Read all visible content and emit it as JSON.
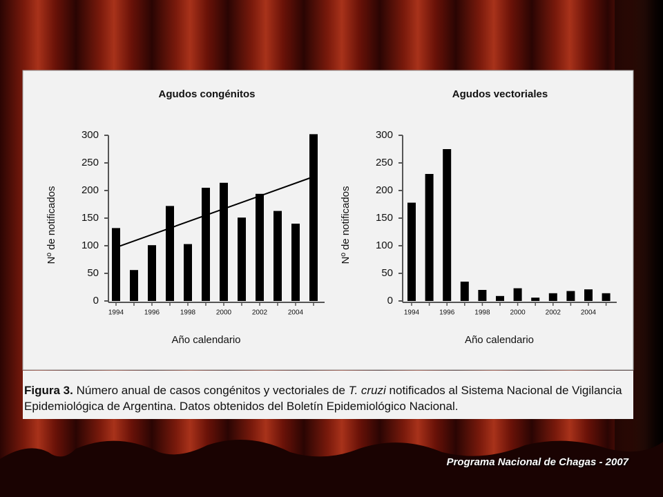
{
  "chart_data": [
    {
      "type": "bar",
      "title": "Agudos congénitos",
      "ylabel": "Nº de notificados",
      "xlabel": "Año calendario",
      "categories": [
        "1994",
        null,
        "1996",
        null,
        "1998",
        null,
        "2000",
        null,
        "2002",
        null,
        "2004",
        null
      ],
      "values": [
        132,
        56,
        101,
        172,
        103,
        205,
        214,
        151,
        194,
        163,
        140,
        302
      ],
      "trend": {
        "start": 97,
        "end": 225
      },
      "color": "#000000",
      "ylim": [
        0,
        300
      ],
      "yticks": [
        0,
        50,
        100,
        150,
        200,
        250,
        300
      ]
    },
    {
      "type": "bar",
      "title": "Agudos vectoriales",
      "ylabel": "Nº de notificados",
      "xlabel": "Año calendario",
      "categories": [
        "1994",
        null,
        "1996",
        null,
        "1998",
        null,
        "2000",
        null,
        "2002",
        null,
        "2004",
        null
      ],
      "values": [
        178,
        230,
        275,
        35,
        20,
        9,
        23,
        6,
        14,
        18,
        21,
        14
      ],
      "color": "#000000",
      "ylim": [
        0,
        300
      ],
      "yticks": [
        0,
        50,
        100,
        150,
        200,
        250,
        300
      ]
    }
  ],
  "caption": {
    "label": "Figura 3.",
    "text1": " Número anual de casos congénitos y vectoriales de ",
    "italic": "T. cruzi",
    "text2": " notificados al Sistema Nacional de Vigilancia Epidemiológica de Argentina. Datos obtenidos del Boletín Epidemiológico Nacional."
  },
  "footer": "Programa Nacional de Chagas - 2007"
}
